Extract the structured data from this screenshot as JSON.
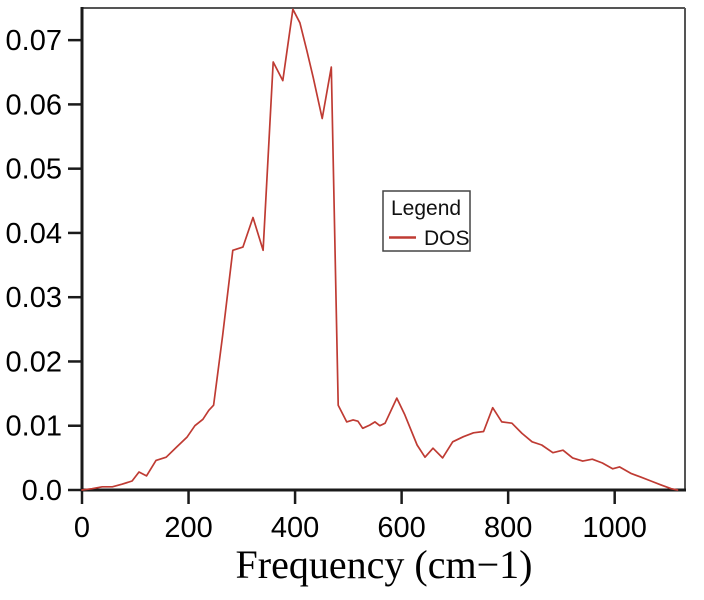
{
  "figure": {
    "background": "#ffffff",
    "frame_color": "#1a1a1a",
    "box_color": "#555555"
  },
  "legend": {
    "title": "Legend"
  },
  "chart_data": {
    "type": "line",
    "title": "",
    "xlabel": "Frequency (cm−1)",
    "ylabel": "",
    "xlim": [
      0,
      1132
    ],
    "ylim": [
      0,
      0.075
    ],
    "grid": false,
    "legend_position": "center-right-inside",
    "line_color": "#bf3b33",
    "x_ticks": [
      0,
      200,
      400,
      600,
      800,
      1000
    ],
    "x_tick_labels": [
      "0",
      "200",
      "400",
      "600",
      "800",
      "1000"
    ],
    "y_ticks": [
      0,
      0.01,
      0.02,
      0.03,
      0.04,
      0.05,
      0.06,
      0.07
    ],
    "y_tick_labels": [
      "0.0",
      "0.01",
      "0.02",
      "0.03",
      "0.04",
      "0.05",
      "0.06",
      "0.07"
    ],
    "series": [
      {
        "name": "DOS",
        "color": "#bf3b33",
        "points": [
          [
            0,
            0.0
          ],
          [
            19,
            0.0002
          ],
          [
            38,
            0.0005
          ],
          [
            57,
            0.0005
          ],
          [
            75,
            0.0009
          ],
          [
            94,
            0.0014
          ],
          [
            107,
            0.0028
          ],
          [
            121,
            0.0022
          ],
          [
            139,
            0.0046
          ],
          [
            158,
            0.0051
          ],
          [
            178,
            0.0067
          ],
          [
            197,
            0.0082
          ],
          [
            212,
            0.01
          ],
          [
            227,
            0.011
          ],
          [
            238,
            0.0124
          ],
          [
            247,
            0.0132
          ],
          [
            264,
            0.024
          ],
          [
            283,
            0.0373
          ],
          [
            302,
            0.0378
          ],
          [
            321,
            0.0424
          ],
          [
            340,
            0.0373
          ],
          [
            359,
            0.0666
          ],
          [
            377,
            0.0637
          ],
          [
            396,
            0.0748
          ],
          [
            409,
            0.0727
          ],
          [
            422,
            0.0684
          ],
          [
            434,
            0.0642
          ],
          [
            451,
            0.0578
          ],
          [
            468,
            0.0658
          ],
          [
            481,
            0.0132
          ],
          [
            497,
            0.0106
          ],
          [
            509,
            0.0109
          ],
          [
            518,
            0.0107
          ],
          [
            527,
            0.0096
          ],
          [
            540,
            0.0101
          ],
          [
            550,
            0.0106
          ],
          [
            559,
            0.01
          ],
          [
            569,
            0.0104
          ],
          [
            591,
            0.0143
          ],
          [
            606,
            0.0117
          ],
          [
            629,
            0.007
          ],
          [
            644,
            0.0051
          ],
          [
            659,
            0.0065
          ],
          [
            677,
            0.005
          ],
          [
            696,
            0.0075
          ],
          [
            716,
            0.0083
          ],
          [
            735,
            0.0089
          ],
          [
            754,
            0.0091
          ],
          [
            771,
            0.0128
          ],
          [
            788,
            0.0106
          ],
          [
            807,
            0.0104
          ],
          [
            826,
            0.0088
          ],
          [
            845,
            0.0075
          ],
          [
            863,
            0.007
          ],
          [
            884,
            0.0058
          ],
          [
            903,
            0.0062
          ],
          [
            921,
            0.005
          ],
          [
            940,
            0.0045
          ],
          [
            958,
            0.0048
          ],
          [
            977,
            0.0042
          ],
          [
            996,
            0.0033
          ],
          [
            1009,
            0.0036
          ],
          [
            1030,
            0.0026
          ],
          [
            1049,
            0.002
          ],
          [
            1068,
            0.0014
          ],
          [
            1087,
            0.0008
          ],
          [
            1106,
            0.0002
          ],
          [
            1118,
            0.0
          ]
        ]
      }
    ]
  }
}
